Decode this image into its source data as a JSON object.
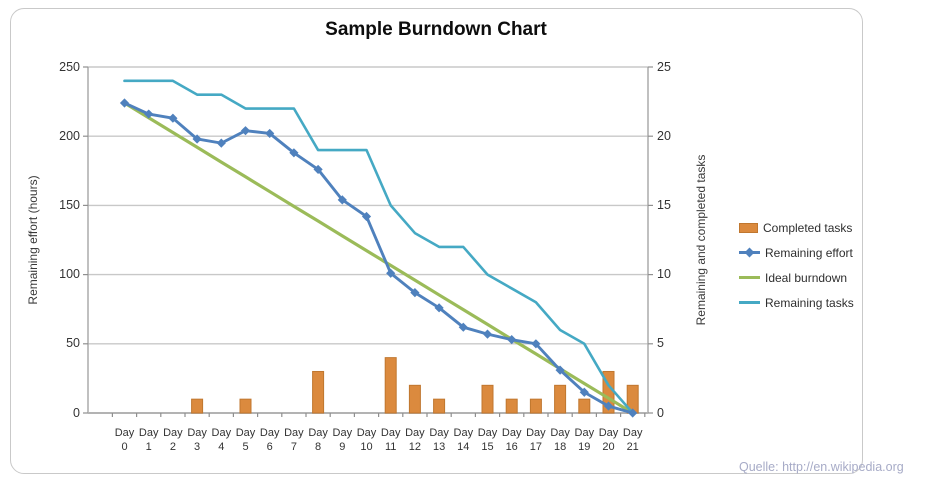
{
  "title": "Sample Burndown Chart",
  "source_note": "Quelle: http://en.wikipedia.org",
  "chart_data": {
    "type": "combo",
    "categories": [
      "Day 0",
      "Day 1",
      "Day 2",
      "Day 3",
      "Day 4",
      "Day 5",
      "Day 6",
      "Day 7",
      "Day 8",
      "Day 9",
      "Day 10",
      "Day 11",
      "Day 12",
      "Day 13",
      "Day 14",
      "Day 15",
      "Day 16",
      "Day 17",
      "Day 18",
      "Day 19",
      "Day 20",
      "Day 21"
    ],
    "left_axis": {
      "label": "Remaining effort (hours)",
      "min": 0,
      "max": 250,
      "ticks": [
        0,
        50,
        100,
        150,
        200,
        250
      ]
    },
    "right_axis": {
      "label": "Remaining and completed tasks",
      "min": 0,
      "max": 25,
      "ticks": [
        0,
        5,
        10,
        15,
        20,
        25
      ]
    },
    "grid": true,
    "legend_position": "right",
    "series": [
      {
        "name": "Completed tasks",
        "type": "bar",
        "axis": "right",
        "color": "#db8a3e",
        "edge_color": "#c0772f",
        "values": [
          0,
          0,
          0,
          1,
          0,
          1,
          0,
          0,
          3,
          0,
          0,
          4,
          2,
          1,
          0,
          2,
          1,
          1,
          2,
          1,
          3,
          2
        ]
      },
      {
        "name": "Remaining effort",
        "type": "line",
        "axis": "left",
        "color": "#4f81bd",
        "marker": "diamond",
        "values": [
          224,
          216,
          213,
          198,
          195,
          204,
          202,
          188,
          176,
          154,
          142,
          101,
          87,
          76,
          62,
          57,
          53,
          50,
          31,
          15,
          5,
          0
        ]
      },
      {
        "name": "Ideal burndown",
        "type": "line",
        "axis": "left",
        "color": "#9bbb59",
        "values": [
          224,
          213.3,
          202.7,
          192,
          181.3,
          170.7,
          160,
          149.3,
          138.7,
          128,
          117.3,
          106.7,
          96,
          85.3,
          74.7,
          64,
          53.3,
          42.7,
          32,
          21.3,
          10.7,
          0
        ]
      },
      {
        "name": "Remaining tasks",
        "type": "line",
        "axis": "right",
        "color": "#45a9c4",
        "values": [
          24,
          24,
          24,
          23,
          23,
          22,
          22,
          22,
          19,
          19,
          19,
          15,
          13,
          12,
          12,
          10,
          9,
          8,
          6,
          5,
          2,
          0
        ]
      }
    ],
    "colors": {
      "gridline": "#c8c8c8",
      "axis_line": "#a6a6a6",
      "tick_mark": "#8f8f8f"
    }
  }
}
